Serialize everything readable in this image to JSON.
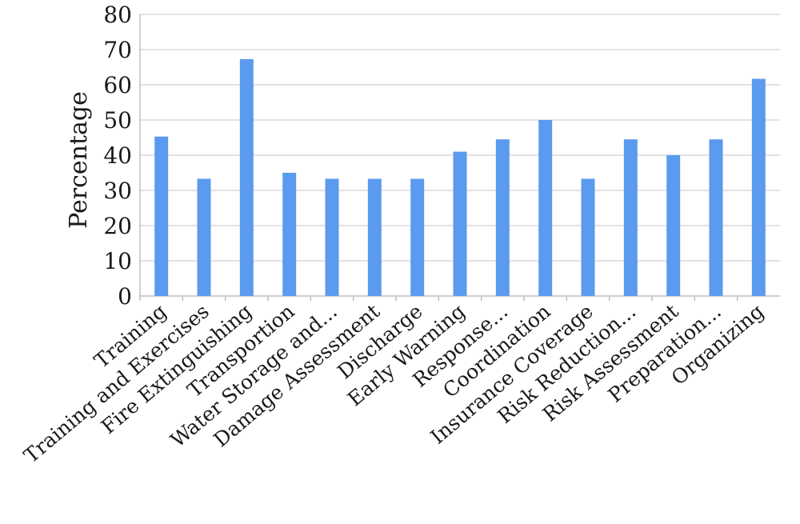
{
  "chart_data": {
    "type": "bar",
    "title": "",
    "xlabel": "",
    "ylabel": "Percentage",
    "ylim": [
      0,
      80
    ],
    "yticks": [
      0,
      10,
      20,
      30,
      40,
      50,
      60,
      70,
      80
    ],
    "grid": "horizontal",
    "bar_color": "#5b9bef",
    "categories": [
      "Training",
      "Training and Exercises",
      "Fire Extinguishing",
      "Transportion",
      "Water Storage and...",
      "Damage Assessment",
      "Discharge",
      "Early Warning",
      "Response...",
      "Coordination",
      "Insurance Coverage",
      "Risk Reduction...",
      "Risk Assessment",
      "Preparation...",
      "Organizing"
    ],
    "values": [
      45.3,
      33.3,
      67.3,
      35,
      33.3,
      33.3,
      33.3,
      41,
      44.5,
      50,
      33.3,
      44.5,
      40,
      44.5,
      61.7
    ]
  }
}
